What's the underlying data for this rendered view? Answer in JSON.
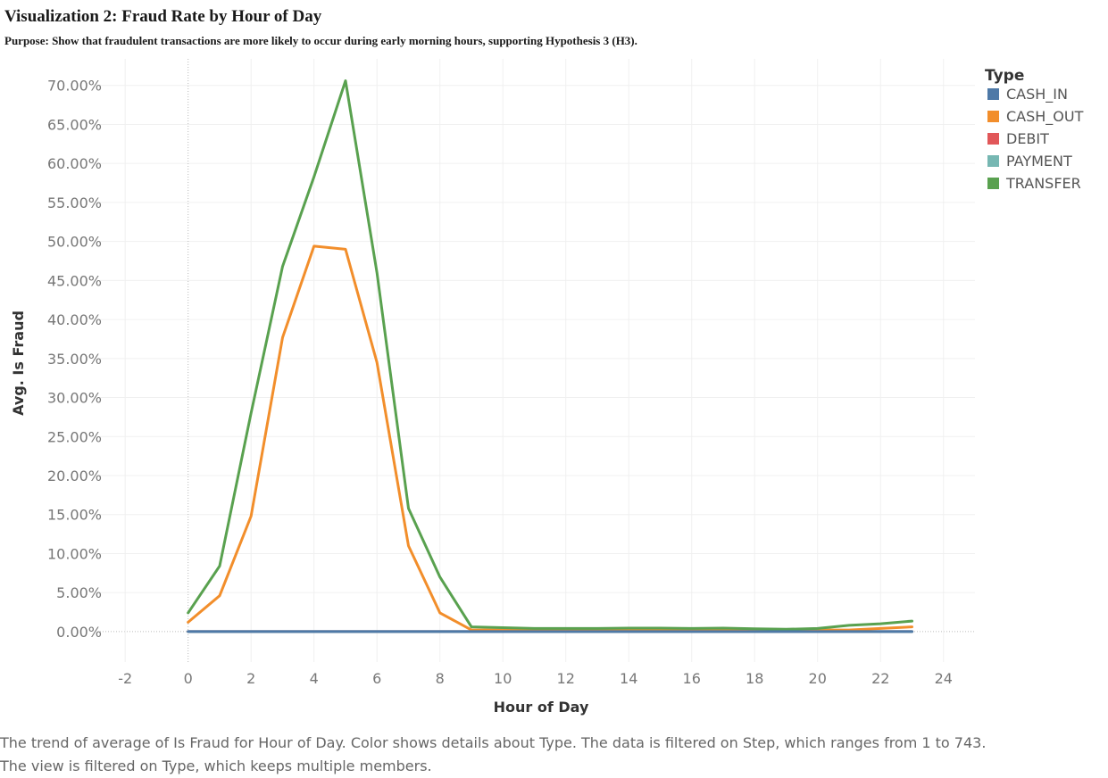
{
  "header": {
    "title": "Visualization 2: Fraud Rate by Hour of Day",
    "subtitle": "Purpose: Show that fraudulent transactions are more likely to occur during early morning hours, supporting Hypothesis 3 (H3)."
  },
  "caption": "The trend of average of Is Fraud for Hour of Day.  Color shows details about Type. The data is filtered on Step, which ranges from 1 to 743. The view is filtered on Type, which keeps multiple members.",
  "chart_data": {
    "type": "line",
    "xlabel": "Hour of Day",
    "ylabel": "Avg. Is Fraud",
    "xlim": [
      -2.8,
      25
    ],
    "ylim": [
      -3.9,
      73.4
    ],
    "x_ticks": [
      -2,
      0,
      2,
      4,
      6,
      8,
      10,
      12,
      14,
      16,
      18,
      20,
      22,
      24
    ],
    "y_ticks": [
      0,
      5,
      10,
      15,
      20,
      25,
      30,
      35,
      40,
      45,
      50,
      55,
      60,
      65,
      70
    ],
    "y_tick_labels": [
      "0.00%",
      "5.00%",
      "10.00%",
      "15.00%",
      "20.00%",
      "25.00%",
      "30.00%",
      "35.00%",
      "40.00%",
      "45.00%",
      "50.00%",
      "55.00%",
      "60.00%",
      "65.00%",
      "70.00%"
    ],
    "grid": true,
    "legend": {
      "title": "Type",
      "placement": "top-right"
    },
    "x": [
      0,
      1,
      2,
      3,
      4,
      5,
      6,
      7,
      8,
      9,
      10,
      11,
      12,
      13,
      14,
      15,
      16,
      17,
      18,
      19,
      20,
      21,
      22,
      23
    ],
    "series": [
      {
        "name": "CASH_IN",
        "color": "#4e79a7",
        "values": [
          0,
          0,
          0,
          0,
          0,
          0,
          0,
          0,
          0,
          0,
          0,
          0,
          0,
          0,
          0,
          0,
          0,
          0,
          0,
          0,
          0,
          0,
          0,
          0
        ]
      },
      {
        "name": "CASH_OUT",
        "color": "#f28e2b",
        "values": [
          1.2,
          4.6,
          14.8,
          37.7,
          49.4,
          49.0,
          34.5,
          11.0,
          2.4,
          0.2,
          0.2,
          0.2,
          0.2,
          0.2,
          0.2,
          0.2,
          0.2,
          0.2,
          0.2,
          0.2,
          0.2,
          0.2,
          0.4,
          0.6
        ]
      },
      {
        "name": "DEBIT",
        "color": "#e15759",
        "values": [
          0,
          0,
          0,
          0,
          0,
          0,
          0,
          0,
          0,
          0,
          0,
          0,
          0,
          0,
          0,
          0,
          0,
          0,
          0,
          0,
          0,
          0,
          0,
          0
        ]
      },
      {
        "name": "PAYMENT",
        "color": "#76b7b2",
        "values": [
          0,
          0,
          0,
          0,
          0,
          0,
          0,
          0,
          0,
          0,
          0,
          0,
          0,
          0,
          0,
          0,
          0,
          0,
          0,
          0,
          0,
          0,
          0,
          0
        ]
      },
      {
        "name": "TRANSFER",
        "color": "#59a14f",
        "values": [
          2.4,
          8.4,
          28.0,
          46.8,
          58.3,
          70.6,
          46.0,
          15.8,
          7.0,
          0.6,
          0.5,
          0.4,
          0.4,
          0.4,
          0.45,
          0.45,
          0.4,
          0.45,
          0.35,
          0.3,
          0.4,
          0.8,
          1.0,
          1.35
        ]
      }
    ]
  }
}
